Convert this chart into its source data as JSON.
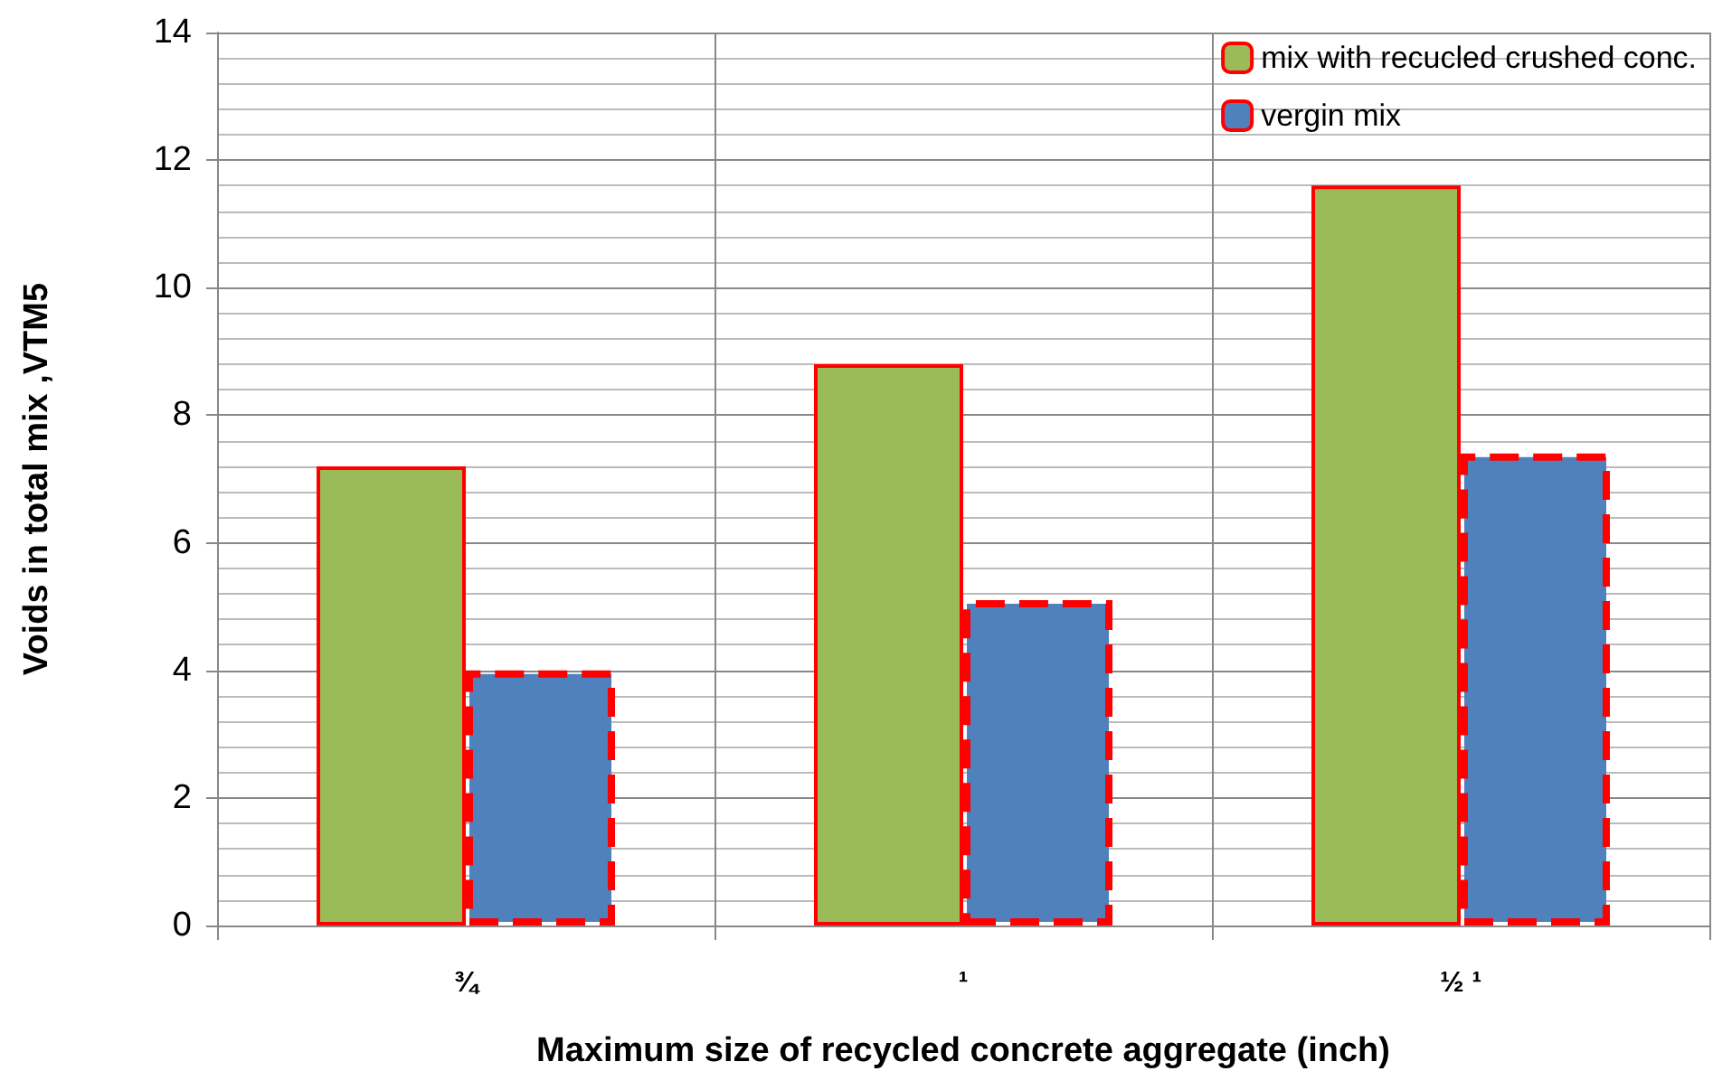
{
  "chart_data": {
    "type": "bar",
    "xlabel": "Maximum size of recycled concrete aggregate (inch)",
    "ylabel": "Voids in total mix ,VTM5",
    "categories": [
      "¾",
      "¹",
      "½ ¹"
    ],
    "series": [
      {
        "name": "mix with recucled crushed conc.",
        "color": "#9bbb59",
        "line_style": "solid",
        "values": [
          7.2,
          8.8,
          11.6
        ]
      },
      {
        "name": "vergin mix",
        "color": "#4f81bd",
        "line_style": "dashed",
        "values": [
          4.0,
          5.1,
          7.4
        ]
      }
    ],
    "ylim": [
      0,
      14
    ],
    "yticks": [
      0,
      2,
      4,
      6,
      8,
      10,
      12,
      14
    ],
    "grid": true,
    "legend": "top right"
  }
}
